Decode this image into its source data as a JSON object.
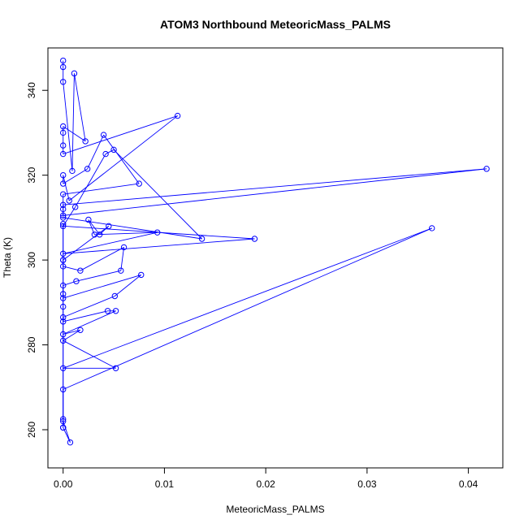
{
  "chart_data": {
    "type": "line",
    "title": "ATOM3 Northbound MeteoricMass_PALMS",
    "xlabel": "MeteoricMass_PALMS",
    "ylabel": "Theta (K)",
    "xlim": [
      -0.0015,
      0.0434
    ],
    "ylim": [
      251,
      350
    ],
    "xticks": [
      0.0,
      0.01,
      0.02,
      0.03,
      0.04
    ],
    "xtick_labels": [
      "0.00",
      "0.01",
      "0.02",
      "0.03",
      "0.04"
    ],
    "yticks": [
      260,
      280,
      300,
      320,
      340
    ],
    "ytick_labels": [
      "260",
      "280",
      "300",
      "320",
      "340"
    ],
    "grid": false,
    "color": "#0000ff",
    "marker": "open-circle",
    "points": [
      [
        0.0,
        347.0
      ],
      [
        0.0,
        345.5
      ],
      [
        0.0,
        342.0
      ],
      [
        0.0009,
        321.0
      ],
      [
        0.0011,
        344.0
      ],
      [
        0.0022,
        328.0
      ],
      [
        0.0,
        331.5
      ],
      [
        0.0,
        330.0
      ],
      [
        0.0,
        327.0
      ],
      [
        0.0,
        325.0
      ],
      [
        0.0113,
        334.0
      ],
      [
        0.0006,
        314.0
      ],
      [
        0.0,
        320.0
      ],
      [
        0.0,
        318.0
      ],
      [
        0.0024,
        321.5
      ],
      [
        0.004,
        329.5
      ],
      [
        0.0075,
        318.0
      ],
      [
        0.0,
        315.5
      ],
      [
        0.0,
        312.0
      ],
      [
        0.0,
        310.5
      ],
      [
        0.0418,
        321.5
      ],
      [
        0.0,
        313.0
      ],
      [
        0.0,
        310.0
      ],
      [
        0.0137,
        305.0
      ],
      [
        0.005,
        326.0
      ],
      [
        0.0042,
        325.0
      ],
      [
        0.0012,
        312.5
      ],
      [
        0.0,
        308.0
      ],
      [
        0.0189,
        305.0
      ],
      [
        0.0,
        301.5
      ],
      [
        0.0093,
        306.5
      ],
      [
        0.0031,
        306.0
      ],
      [
        0.0025,
        309.5
      ],
      [
        0.0036,
        306.0
      ],
      [
        0.0045,
        308.0
      ],
      [
        0.0,
        300.0
      ],
      [
        0.0,
        298.5
      ],
      [
        0.0017,
        297.5
      ],
      [
        0.006,
        303.0
      ],
      [
        0.0057,
        297.5
      ],
      [
        0.0013,
        295.0
      ],
      [
        0.0,
        294.0
      ],
      [
        0.0,
        291.0
      ],
      [
        0.0077,
        296.5
      ],
      [
        0.0051,
        291.5
      ],
      [
        0.0,
        286.5
      ],
      [
        0.0,
        285.5
      ],
      [
        0.0044,
        288.0
      ],
      [
        0.0052,
        288.0
      ],
      [
        0.0,
        282.5
      ],
      [
        0.0017,
        283.5
      ],
      [
        0.0,
        281.0
      ],
      [
        0.0052,
        274.5
      ],
      [
        0.0,
        274.5
      ],
      [
        0.0364,
        307.5
      ],
      [
        0.0,
        269.5
      ],
      [
        0.0,
        262.5
      ],
      [
        0.0,
        260.5
      ],
      [
        0.0007,
        257.0
      ],
      [
        0.0,
        262.0
      ],
      [
        0.0,
        289.0
      ],
      [
        0.0,
        300.0
      ],
      [
        0.0,
        308.5
      ],
      [
        0.0,
        292.0
      ],
      [
        0.0,
        260.5
      ]
    ]
  }
}
